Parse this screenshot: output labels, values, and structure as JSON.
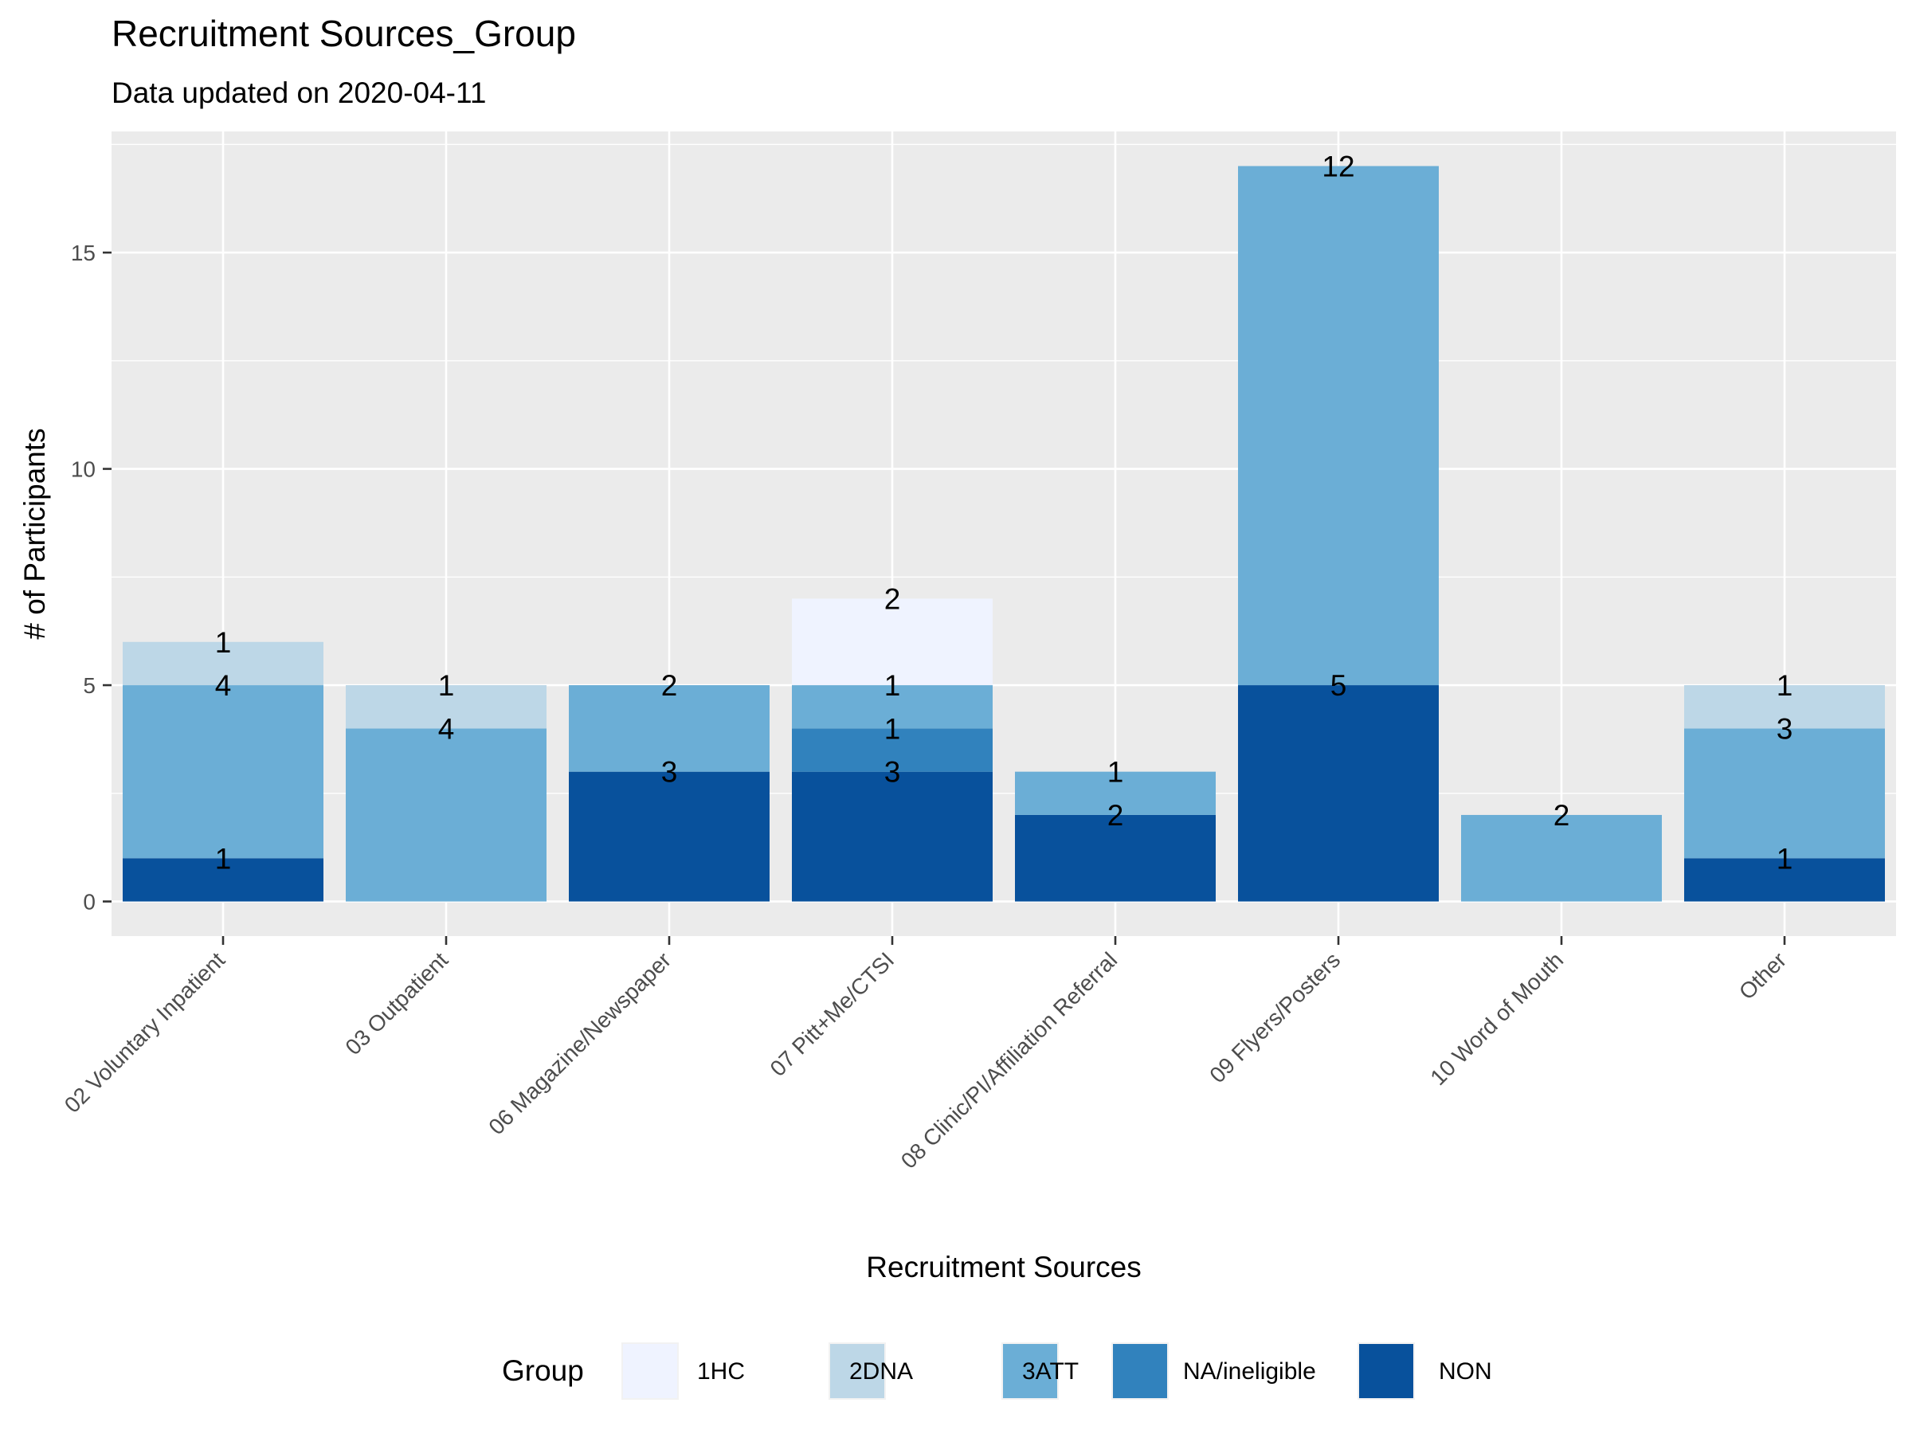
{
  "chart_data": {
    "type": "bar",
    "stacked": true,
    "title": "Recruitment Sources_Group",
    "subtitle": "Data updated on 2020-04-11",
    "xlabel": "Recruitment Sources",
    "ylabel": "# of Participants",
    "ylim": [
      -0.8,
      17.8
    ],
    "yticks": [
      0,
      5,
      10,
      15
    ],
    "grid": true,
    "legend": {
      "title": "Group",
      "position": "bottom"
    },
    "categories": [
      "02 Voluntary Inpatient",
      "03 Outpatient",
      "06 Magazine/Newspaper",
      "07 Pitt+Me/CTSI",
      "08 Clinic/PI/Affiliation Referral",
      "09 Flyers/Posters",
      "10 Word of Mouth",
      "Other"
    ],
    "series": [
      {
        "name": "NON",
        "color": "#08519c",
        "values": [
          1,
          0,
          3,
          3,
          2,
          5,
          0,
          1
        ]
      },
      {
        "name": "NA/ineligible",
        "color": "#3182bd",
        "values": [
          0,
          0,
          0,
          1,
          0,
          0,
          0,
          0
        ]
      },
      {
        "name": "3ATT",
        "color": "#6baed6",
        "values": [
          4,
          4,
          2,
          1,
          1,
          12,
          2,
          3
        ]
      },
      {
        "name": "2DNA",
        "color": "#bdd7e7",
        "values": [
          1,
          1,
          0,
          0,
          0,
          0,
          0,
          1
        ]
      },
      {
        "name": "1HC",
        "color": "#eff3ff",
        "values": [
          0,
          0,
          0,
          2,
          0,
          0,
          0,
          0
        ]
      }
    ],
    "legend_order": [
      "1HC",
      "2DNA",
      "3ATT",
      "NA/ineligible",
      "NON"
    ],
    "colors": {
      "panel_bg": "#ebebeb",
      "grid": "#ffffff",
      "tick_text": "#4d4d4d"
    }
  }
}
